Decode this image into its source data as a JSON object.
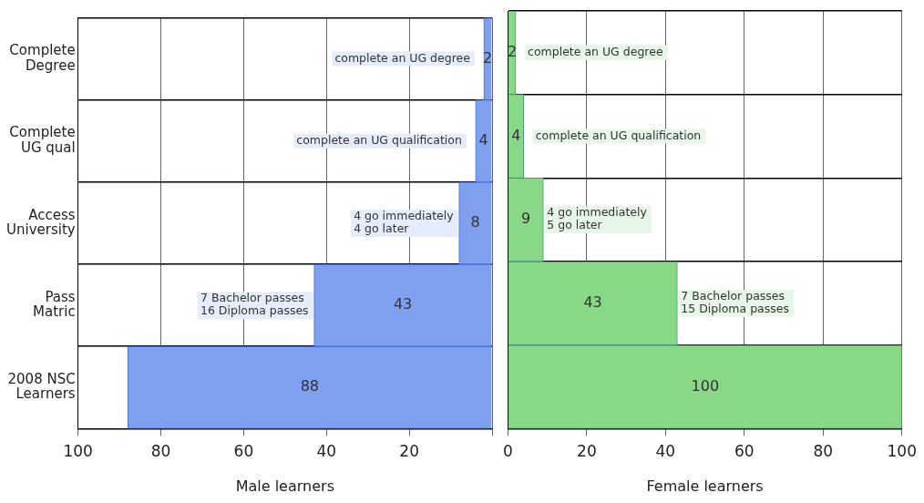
{
  "chart_data": [
    {
      "type": "bar",
      "orientation": "horizontal",
      "grid": true,
      "data_labels": true,
      "xlabel": "Male learners",
      "categories": [
        "Complete\nDegree",
        "Complete\nUG qual",
        "Access\nUniversity",
        "Pass\nMatric",
        "2008 NSC\nLearners"
      ],
      "series": [
        {
          "color": "#7f9fef",
          "values": [
            2,
            4,
            8,
            43,
            88
          ]
        }
      ],
      "xlim": [
        100,
        0
      ],
      "xticks": [
        100,
        80,
        60,
        40,
        20,
        {
          "value": 0,
          "label": null
        }
      ],
      "annotations": [
        {
          "text": "complete an UG degree",
          "x": 2,
          "y": "Complete\nDegree"
        },
        {
          "text": "complete an UG qualification",
          "x": 4,
          "y": "Complete\nUG qual"
        },
        {
          "text": "4 go immediately\n4 go later",
          "x": 8,
          "y": "Access\nUniversity"
        },
        {
          "text": "7 Bachelor passes\n16 Diploma passes",
          "x": 43,
          "y": "Pass\nMatric"
        }
      ]
    },
    {
      "type": "bar",
      "orientation": "horizontal",
      "grid": true,
      "data_labels": true,
      "xlabel": "Female learners",
      "tick_labels": "x",
      "categories": [
        "Complete\nDegree",
        "Complete\nUG qual",
        "Access\nUniversity",
        "Pass\nMatric",
        "2008 NSC\nLearners"
      ],
      "series": [
        {
          "color": "#88d888",
          "values": [
            2,
            4,
            9,
            43,
            100
          ]
        }
      ],
      "xlim": [
        0,
        100
      ],
      "xticks": [
        0,
        20,
        40,
        60,
        80,
        100
      ],
      "annotations": [
        {
          "text": "complete an UG degree",
          "x": 2,
          "y": "Complete\nDegree"
        },
        {
          "text": "complete an UG qualification",
          "x": 4,
          "y": "Complete\nUG qual"
        },
        {
          "text": "4 go immediately\n5 go later",
          "x": 9,
          "y": "Access\nUniversity"
        },
        {
          "text": "7 Bachelor passes\n15 Diploma passes",
          "x": 43,
          "y": "Pass\nMatric"
        }
      ]
    }
  ]
}
